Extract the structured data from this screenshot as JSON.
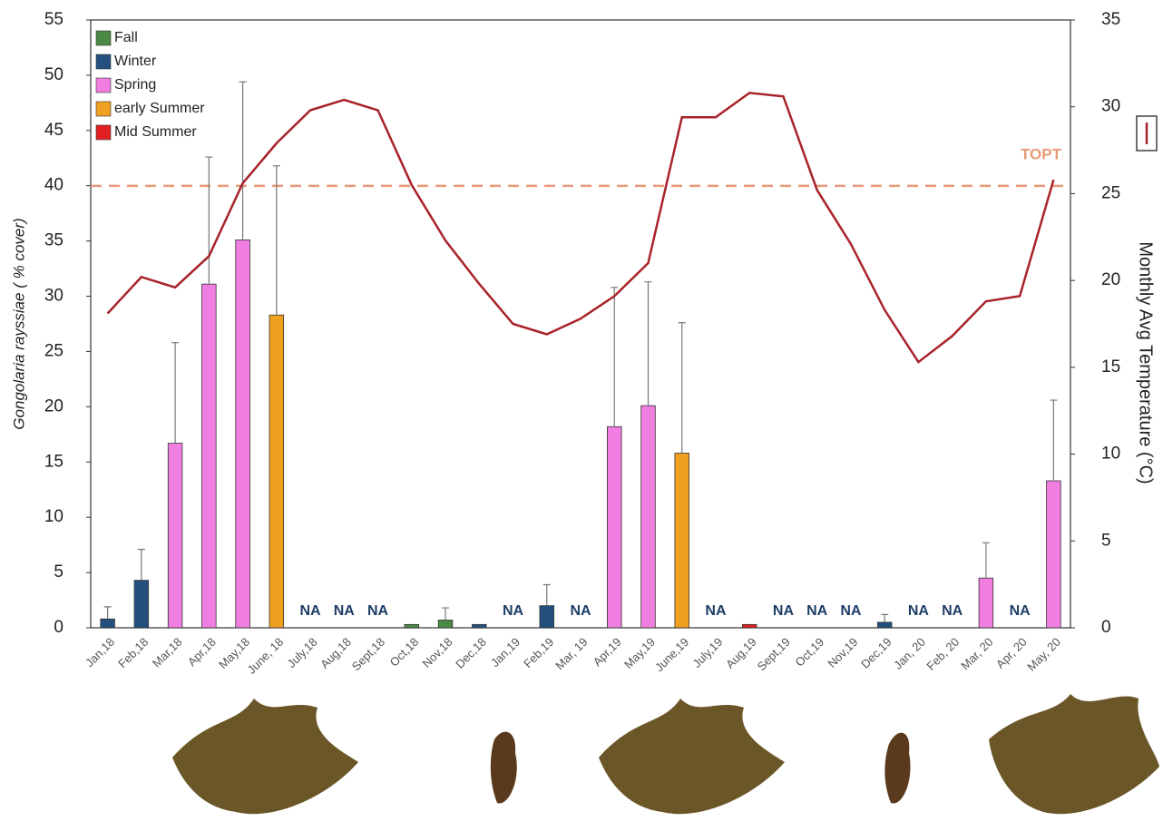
{
  "chart_data": {
    "type": "bar",
    "y_label": "Gongolaria rayssiae ( % cover)",
    "y2_label": "Monthly Avg Temperature (°C)",
    "categories": [
      "Jan,18",
      "Feb,18",
      "Mar,18",
      "Apr,18",
      "May,18",
      "June, 18",
      "July,18",
      "Aug,18",
      "Sept,18",
      "Oct,18",
      "Nov,18",
      "Dec,18",
      "Jan,19",
      "Feb,19",
      "Mar, 19",
      "Apr,19",
      "May,19",
      "June,19",
      "July,19",
      "Aug,19",
      "Sept,19",
      "Oct,19",
      "Nov,19",
      "Dec,19",
      "Jan, 20",
      "Feb, 20",
      "Mar, 20",
      "Apr, 20",
      "May, 20"
    ],
    "ylim": [
      0,
      55
    ],
    "yticks": [
      0,
      5,
      10,
      15,
      20,
      25,
      30,
      35,
      40,
      45,
      50,
      55
    ],
    "y2lim": [
      0,
      35
    ],
    "y2ticks": [
      0,
      5,
      10,
      15,
      20,
      25,
      30,
      35
    ],
    "legend": "top-left",
    "series": [
      {
        "type": "bar",
        "name": "Fall",
        "color": "#4a8a45",
        "values": [
          null,
          null,
          null,
          null,
          null,
          null,
          null,
          null,
          null,
          0.3,
          0.7,
          null,
          null,
          null,
          null,
          null,
          null,
          null,
          null,
          null,
          null,
          null,
          null,
          null,
          null,
          null,
          null,
          null,
          null
        ],
        "errors": [
          null,
          null,
          null,
          null,
          null,
          null,
          null,
          null,
          null,
          null,
          1.1,
          null,
          null,
          null,
          null,
          null,
          null,
          null,
          null,
          null,
          null,
          null,
          null,
          null,
          null,
          null,
          null,
          null,
          null
        ]
      },
      {
        "type": "bar",
        "name": "Winter",
        "color": "#23507f",
        "values": [
          0.8,
          4.3,
          null,
          null,
          null,
          null,
          null,
          null,
          null,
          null,
          null,
          0.3,
          null,
          2.0,
          null,
          null,
          null,
          null,
          null,
          null,
          null,
          null,
          null,
          0.5,
          null,
          null,
          null,
          null,
          null
        ],
        "errors": [
          1.1,
          2.8,
          null,
          null,
          null,
          null,
          null,
          null,
          null,
          null,
          null,
          null,
          null,
          1.9,
          null,
          null,
          null,
          null,
          null,
          null,
          null,
          null,
          null,
          0.7,
          null,
          null,
          null,
          null,
          null
        ]
      },
      {
        "type": "bar",
        "name": "Spring",
        "color": "#f07ee0",
        "values": [
          null,
          null,
          16.7,
          31.1,
          35.1,
          null,
          null,
          null,
          null,
          null,
          null,
          null,
          null,
          null,
          null,
          18.2,
          20.1,
          null,
          null,
          null,
          null,
          null,
          null,
          null,
          null,
          null,
          4.5,
          null,
          13.3
        ],
        "errors": [
          null,
          null,
          9.1,
          11.5,
          14.3,
          null,
          null,
          null,
          null,
          null,
          null,
          null,
          null,
          null,
          null,
          12.6,
          11.2,
          null,
          null,
          null,
          null,
          null,
          null,
          null,
          null,
          null,
          3.2,
          null,
          7.3
        ]
      },
      {
        "type": "bar",
        "name": "early Summer",
        "color": "#f0a020",
        "values": [
          null,
          null,
          null,
          null,
          null,
          28.3,
          null,
          null,
          null,
          null,
          null,
          null,
          null,
          null,
          null,
          null,
          null,
          15.8,
          null,
          null,
          null,
          null,
          null,
          null,
          null,
          null,
          null,
          null,
          null
        ],
        "errors": [
          null,
          null,
          null,
          null,
          null,
          13.5,
          null,
          null,
          null,
          null,
          null,
          null,
          null,
          null,
          null,
          null,
          null,
          11.8,
          null,
          null,
          null,
          null,
          null,
          null,
          null,
          null,
          null,
          null,
          null
        ]
      },
      {
        "type": "bar",
        "name": "Mid Summer",
        "color": "#e02020",
        "values": [
          null,
          null,
          null,
          null,
          null,
          null,
          null,
          null,
          null,
          null,
          null,
          null,
          null,
          null,
          null,
          null,
          null,
          null,
          null,
          0.3,
          null,
          null,
          null,
          null,
          null,
          null,
          null,
          null,
          null
        ],
        "errors": [
          null,
          null,
          null,
          null,
          null,
          null,
          null,
          null,
          null,
          null,
          null,
          null,
          null,
          null,
          null,
          null,
          null,
          null,
          null,
          null,
          null,
          null,
          null,
          null,
          null,
          null,
          null,
          null,
          null
        ]
      },
      {
        "type": "line",
        "axis": "y2",
        "color": "#a8232a",
        "values": [
          18.1,
          20.2,
          19.6,
          21.4,
          25.6,
          27.9,
          29.8,
          30.4,
          29.8,
          25.5,
          22.3,
          19.8,
          17.5,
          16.9,
          17.8,
          19.1,
          21.0,
          29.4,
          29.4,
          30.8,
          30.6,
          25.2,
          22.1,
          18.3,
          15.3,
          16.8,
          18.8,
          19.1,
          25.8
        ]
      }
    ],
    "bar_labels": [
      null,
      null,
      null,
      null,
      null,
      null,
      "NA",
      "NA",
      "NA",
      null,
      null,
      null,
      "NA",
      null,
      "NA",
      null,
      null,
      null,
      "NA",
      null,
      "NA",
      "NA",
      "NA",
      null,
      "NA",
      "NA",
      null,
      "NA",
      null
    ],
    "reference_line": {
      "label": "TOPT",
      "value": 25.45,
      "axis": "y2",
      "color": "#e89a78"
    }
  }
}
